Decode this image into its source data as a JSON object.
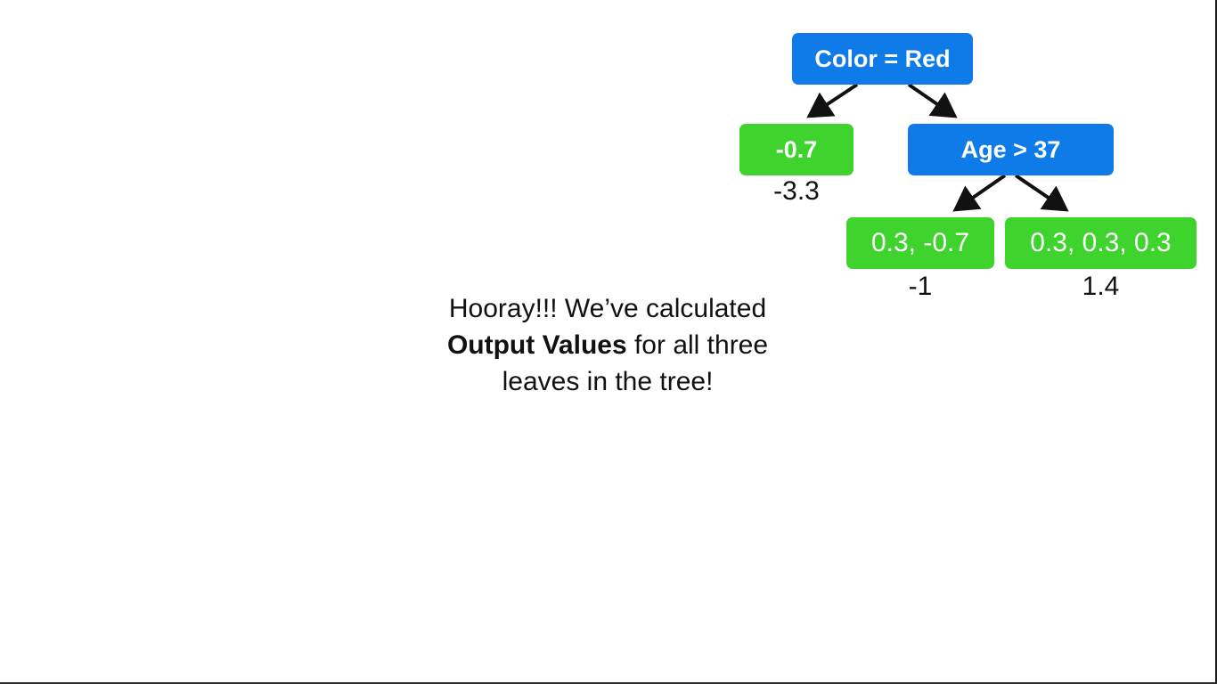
{
  "tree": {
    "root": {
      "label": "Color = Red"
    },
    "left_leaf": {
      "residuals": "-0.7",
      "output_value": "-3.3"
    },
    "right_split": {
      "label": "Age > 37"
    },
    "right_left_leaf": {
      "residuals": "0.3, -0.7",
      "output_value": "-1"
    },
    "right_right_leaf": {
      "residuals": "0.3, 0.3, 0.3",
      "output_value": "1.4"
    }
  },
  "caption": {
    "line1": "Hooray!!! We’ve calculated",
    "bold": "Output Values",
    "line2_rest": " for all three",
    "line3": "leaves in the tree!"
  },
  "colors": {
    "split_node": "#0f7be8",
    "leaf_node": "#3fd32e",
    "arrow": "#111111"
  }
}
